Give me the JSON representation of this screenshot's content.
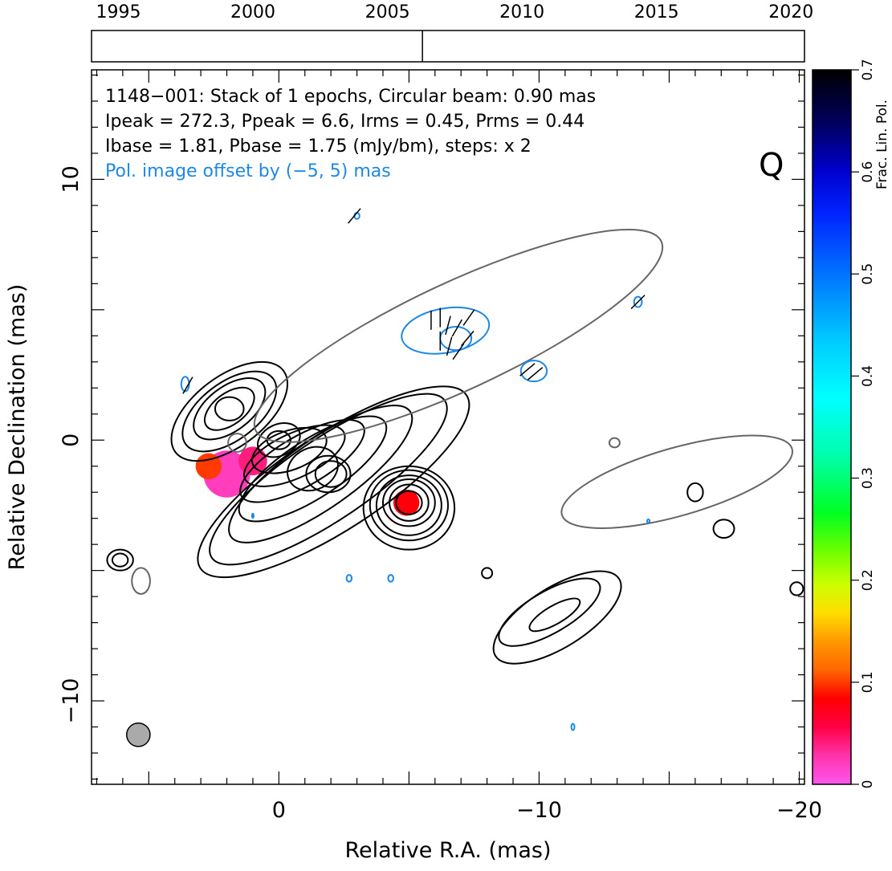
{
  "chart_data": {
    "type": "contour",
    "source": "1148-001",
    "annotation_lines": [
      "1148−001: Stack of 1 epochs, Circular beam: 0.90 mas",
      "Ipeak = 272.3, Ppeak = 6.6, Irms = 0.45, Prms = 0.44",
      "Ibase = 1.81, Pbase = 1.75 (mJy/bm), steps: x 2"
    ],
    "pol_offset_note": "Pol. image offset by (−5, 5) mas",
    "stokes_label": "Q",
    "xlabel": "Relative R.A. (mas)",
    "ylabel": "Relative Declination (mas)",
    "xlim": [
      7.2,
      -20.2
    ],
    "ylim": [
      -13.2,
      14.2
    ],
    "x_ticks": [
      0,
      -10,
      -20
    ],
    "x_tick_labels": [
      "0",
      "−10",
      "−20"
    ],
    "y_ticks": [
      -10,
      0,
      10
    ],
    "y_tick_labels": [
      "−10",
      "0",
      "10"
    ],
    "timeline": {
      "range": [
        1994,
        2020.5
      ],
      "ticks": [
        1995,
        2000,
        2005,
        2010,
        2015,
        2020
      ],
      "tick_labels": [
        "1995",
        "2000",
        "2005",
        "2010",
        "2015",
        "2020"
      ],
      "epochs": [
        2006.3
      ]
    },
    "colorbar": {
      "label": "Frac. Lin. Pol.",
      "range": [
        0,
        0.7
      ],
      "ticks": [
        0,
        0.1,
        0.2,
        0.3,
        0.4,
        0.5,
        0.6,
        0.7
      ],
      "tick_labels": [
        "0",
        "0.1",
        "0.2",
        "0.3",
        "0.4",
        "0.5",
        "0.6",
        "0.7"
      ]
    },
    "beam": {
      "x": 5.4,
      "y": -11.3,
      "diameter_mas": 0.9
    },
    "colors": {
      "total_intensity_contour": "#000000",
      "negative_contour": "#666666",
      "polarization_contour": "#1e88e5",
      "beam_fill": "#aaaaaa"
    },
    "fracpol_blobs": [
      {
        "x": 2.0,
        "y": -1.3,
        "r": 0.9,
        "frac_pol": 0.02
      },
      {
        "x": 1.0,
        "y": -0.8,
        "r": 0.55,
        "frac_pol": 0.04
      },
      {
        "x": 2.7,
        "y": -1.0,
        "r": 0.5,
        "frac_pol": 0.1
      },
      {
        "x": -4.9,
        "y": -2.4,
        "r": 0.5,
        "frac_pol": 0.08
      }
    ],
    "evpa_ticks": [
      {
        "x": -5.85,
        "y": 4.6,
        "angle_deg": 90
      },
      {
        "x": -6.2,
        "y": 4.7,
        "angle_deg": 90
      },
      {
        "x": -6.5,
        "y": 4.4,
        "angle_deg": 75
      },
      {
        "x": -6.85,
        "y": 4.3,
        "angle_deg": 60
      },
      {
        "x": -7.3,
        "y": 4.7,
        "angle_deg": 55
      },
      {
        "x": -6.2,
        "y": 3.8,
        "angle_deg": 90
      },
      {
        "x": -6.55,
        "y": 3.6,
        "angle_deg": 75
      },
      {
        "x": -6.9,
        "y": 3.4,
        "angle_deg": 55
      },
      {
        "x": -7.25,
        "y": 3.9,
        "angle_deg": 50
      },
      {
        "x": -9.55,
        "y": 2.7,
        "angle_deg": 40
      },
      {
        "x": -9.85,
        "y": 2.55,
        "angle_deg": 40
      },
      {
        "x": -2.9,
        "y": 8.6,
        "angle_deg": 50
      },
      {
        "x": 3.5,
        "y": 2.1,
        "angle_deg": 60
      },
      {
        "x": -13.8,
        "y": 5.3,
        "angle_deg": 45
      }
    ],
    "contours": [
      {
        "kind": "stokes_i",
        "ellipses": [
          {
            "x": 1.9,
            "y": 1.1,
            "rx": 2.6,
            "ry": 1.35,
            "rot": 37
          },
          {
            "x": -2.1,
            "y": -1.6,
            "rx": 6.1,
            "ry": 1.85,
            "rot": 33
          },
          {
            "x": -5.0,
            "y": -2.6,
            "rx": 1.75,
            "ry": 1.6,
            "rot": 0
          },
          {
            "x": 6.1,
            "y": -4.6,
            "rx": 0.5,
            "ry": 0.4,
            "rot": 0
          },
          {
            "x": -16.0,
            "y": -2.0,
            "rx": 0.3,
            "ry": 0.35,
            "rot": 0
          },
          {
            "x": -17.1,
            "y": -3.4,
            "rx": 0.4,
            "ry": 0.35,
            "rot": 0
          },
          {
            "x": -19.9,
            "y": -5.7,
            "rx": 0.25,
            "ry": 0.25,
            "rot": 0
          },
          {
            "x": -8.0,
            "y": -5.1,
            "rx": 0.2,
            "ry": 0.2,
            "rot": 0
          },
          {
            "x": -10.7,
            "y": -6.8,
            "rx": 2.8,
            "ry": 1.15,
            "rot": 32
          }
        ]
      },
      {
        "kind": "stokes_i",
        "ellipses": [
          {
            "x": 1.9,
            "y": 1.1,
            "rx": 2.1,
            "ry": 1.1,
            "rot": 37
          },
          {
            "x": -1.9,
            "y": -1.5,
            "rx": 5.4,
            "ry": 1.55,
            "rot": 34
          },
          {
            "x": -5.0,
            "y": -2.5,
            "rx": 1.5,
            "ry": 1.35,
            "rot": 0
          },
          {
            "x": 6.1,
            "y": -4.6,
            "rx": 0.3,
            "ry": 0.25,
            "rot": 0
          },
          {
            "x": -10.4,
            "y": -6.6,
            "rx": 2.2,
            "ry": 0.8,
            "rot": 30
          }
        ]
      },
      {
        "kind": "stokes_i",
        "ellipses": [
          {
            "x": 1.9,
            "y": 1.2,
            "rx": 1.6,
            "ry": 0.85,
            "rot": 37
          },
          {
            "x": -1.6,
            "y": -1.3,
            "rx": 4.2,
            "ry": 1.3,
            "rot": 35
          },
          {
            "x": -5.0,
            "y": -2.5,
            "rx": 1.25,
            "ry": 1.15,
            "rot": 0
          },
          {
            "x": -10.6,
            "y": -6.7,
            "rx": 1.1,
            "ry": 0.35,
            "rot": 30
          }
        ]
      },
      {
        "kind": "stokes_i",
        "ellipses": [
          {
            "x": 1.9,
            "y": 1.2,
            "rx": 1.1,
            "ry": 0.6,
            "rot": 37
          },
          {
            "x": -1.3,
            "y": -1.1,
            "rx": 3.3,
            "ry": 1.1,
            "rot": 33
          },
          {
            "x": -5.0,
            "y": -2.4,
            "rx": 1.0,
            "ry": 0.9,
            "rot": 0
          }
        ]
      },
      {
        "kind": "stokes_i",
        "ellipses": [
          {
            "x": 1.9,
            "y": 1.2,
            "rx": 0.55,
            "ry": 0.45,
            "rot": 0
          },
          {
            "x": -0.9,
            "y": -0.8,
            "rx": 2.7,
            "ry": 0.95,
            "rot": 30
          },
          {
            "x": -5.0,
            "y": -2.4,
            "rx": 0.75,
            "ry": 0.7,
            "rot": 0
          }
        ]
      },
      {
        "kind": "stokes_i",
        "ellipses": [
          {
            "x": -0.6,
            "y": -0.6,
            "rx": 2.1,
            "ry": 0.85,
            "rot": 25
          },
          {
            "x": -5.0,
            "y": -2.4,
            "rx": 0.5,
            "ry": 0.45,
            "rot": 0
          }
        ]
      },
      {
        "kind": "stokes_i",
        "ellipses": [
          {
            "x": -0.4,
            "y": -0.4,
            "rx": 1.5,
            "ry": 0.75,
            "rot": 20
          }
        ]
      },
      {
        "kind": "stokes_i",
        "ellipses": [
          {
            "x": -1.3,
            "y": -1.1,
            "rx": 1.0,
            "ry": 0.8,
            "rot": 25
          },
          {
            "x": 0.0,
            "y": 0.0,
            "rx": 0.85,
            "ry": 0.6,
            "rot": 25
          }
        ]
      },
      {
        "kind": "stokes_i",
        "ellipses": [
          {
            "x": -1.9,
            "y": -1.3,
            "rx": 0.85,
            "ry": 0.7,
            "rot": 0
          },
          {
            "x": 0.0,
            "y": 0.0,
            "rx": 0.45,
            "ry": 0.35,
            "rot": 0
          }
        ]
      },
      {
        "kind": "stokes_i",
        "ellipses": [
          {
            "x": -2.0,
            "y": -1.3,
            "rx": 0.6,
            "ry": 0.5,
            "rot": 0
          }
        ]
      },
      {
        "kind": "negative",
        "ellipses": [
          {
            "x": -6.9,
            "y": 4.0,
            "rx": 8.6,
            "ry": 2.05,
            "rot": 25
          },
          {
            "x": -15.3,
            "y": -1.6,
            "rx": 4.6,
            "ry": 1.3,
            "rot": 16
          },
          {
            "x": 5.3,
            "y": -5.4,
            "rx": 0.35,
            "ry": 0.5,
            "rot": 0
          },
          {
            "x": 1.6,
            "y": -0.1,
            "rx": 0.35,
            "ry": 0.35,
            "rot": 0
          },
          {
            "x": -12.9,
            "y": -0.1,
            "rx": 0.2,
            "ry": 0.18,
            "rot": 0
          }
        ]
      },
      {
        "kind": "polarization",
        "ellipses": [
          {
            "x": -6.4,
            "y": 4.2,
            "rx": 1.7,
            "ry": 0.85,
            "rot": 10
          },
          {
            "x": -6.8,
            "y": 3.9,
            "rx": 0.6,
            "ry": 0.45,
            "rot": 0
          },
          {
            "x": -9.8,
            "y": 2.65,
            "rx": 0.5,
            "ry": 0.4,
            "rot": 0
          },
          {
            "x": 3.6,
            "y": 2.15,
            "rx": 0.15,
            "ry": 0.28,
            "rot": 0
          },
          {
            "x": -3.0,
            "y": 8.6,
            "rx": 0.1,
            "ry": 0.12,
            "rot": 0
          },
          {
            "x": -13.8,
            "y": 5.3,
            "rx": 0.15,
            "ry": 0.2,
            "rot": 0
          },
          {
            "x": -2.7,
            "y": -5.3,
            "rx": 0.1,
            "ry": 0.13,
            "rot": 0
          },
          {
            "x": -4.3,
            "y": -5.3,
            "rx": 0.1,
            "ry": 0.13,
            "rot": 0
          },
          {
            "x": -14.2,
            "y": -3.1,
            "rx": 0.05,
            "ry": 0.06,
            "rot": 0
          },
          {
            "x": -11.3,
            "y": -11.0,
            "rx": 0.06,
            "ry": 0.12,
            "rot": 0
          },
          {
            "x": 1.0,
            "y": -2.9,
            "rx": 0.03,
            "ry": 0.08,
            "rot": 0
          }
        ]
      }
    ]
  }
}
